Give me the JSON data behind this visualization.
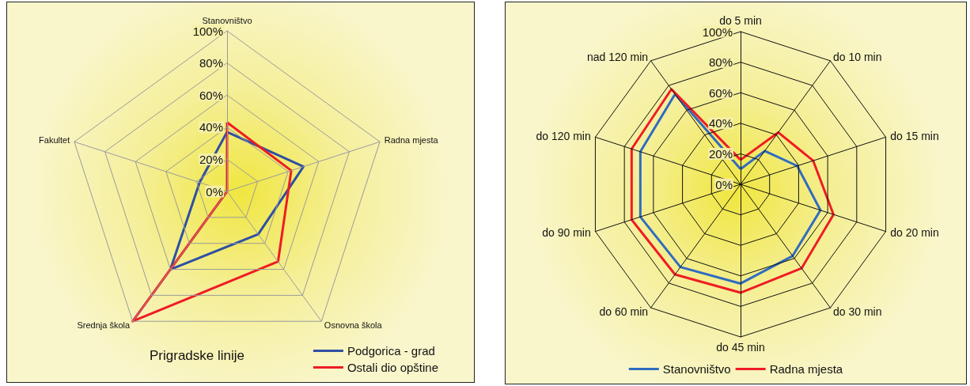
{
  "chart_data": [
    {
      "type": "radar",
      "title": "Prigradske linije",
      "categories": [
        "Stanovništvo",
        "Radna mjesta",
        "Osnovna škola",
        "Srednja škola",
        "Fakultet"
      ],
      "series": [
        {
          "name": "Podgorica - grad",
          "color": "#2e4fa3",
          "values": [
            37,
            50,
            33,
            60,
            18
          ]
        },
        {
          "name": "Ostali dio opštine",
          "color": "#ee1c25",
          "values": [
            43,
            42,
            54,
            100,
            0
          ]
        }
      ],
      "ylim": [
        0,
        100
      ],
      "yticks": [
        {
          "value": 0,
          "label": "0%"
        },
        {
          "value": 20,
          "label": "20%"
        },
        {
          "value": 40,
          "label": "40%"
        },
        {
          "value": 60,
          "label": "60%"
        },
        {
          "value": 80,
          "label": "80%"
        },
        {
          "value": 100,
          "label": "100%"
        }
      ],
      "legend": "bottom right",
      "marker": "none"
    },
    {
      "type": "radar",
      "categories": [
        "do 5 min",
        "do 10 min",
        "do 15 min",
        "do 20 min",
        "do 30 min",
        "do 45 min",
        "do 60 min",
        "do 90 min",
        "do 120 min",
        "nad 120 min"
      ],
      "series": [
        {
          "name": "Stanovništvo",
          "color": "#2f6cc0",
          "values": [
            10,
            27,
            39,
            55,
            58,
            65,
            67,
            69,
            69,
            73
          ]
        },
        {
          "name": "Radna mjesta",
          "color": "#ee1c25",
          "values": [
            16,
            42,
            50,
            64,
            68,
            71,
            73,
            75,
            75,
            77
          ]
        }
      ],
      "ylim": [
        0,
        100
      ],
      "yticks": [
        {
          "value": 0,
          "label": "0%"
        },
        {
          "value": 20,
          "label": "20%"
        },
        {
          "value": 40,
          "label": "40%"
        },
        {
          "value": 60,
          "label": "60%"
        },
        {
          "value": 80,
          "label": "80%"
        },
        {
          "value": 100,
          "label": "100%"
        }
      ],
      "legend": "bottom",
      "marker": "none"
    }
  ]
}
